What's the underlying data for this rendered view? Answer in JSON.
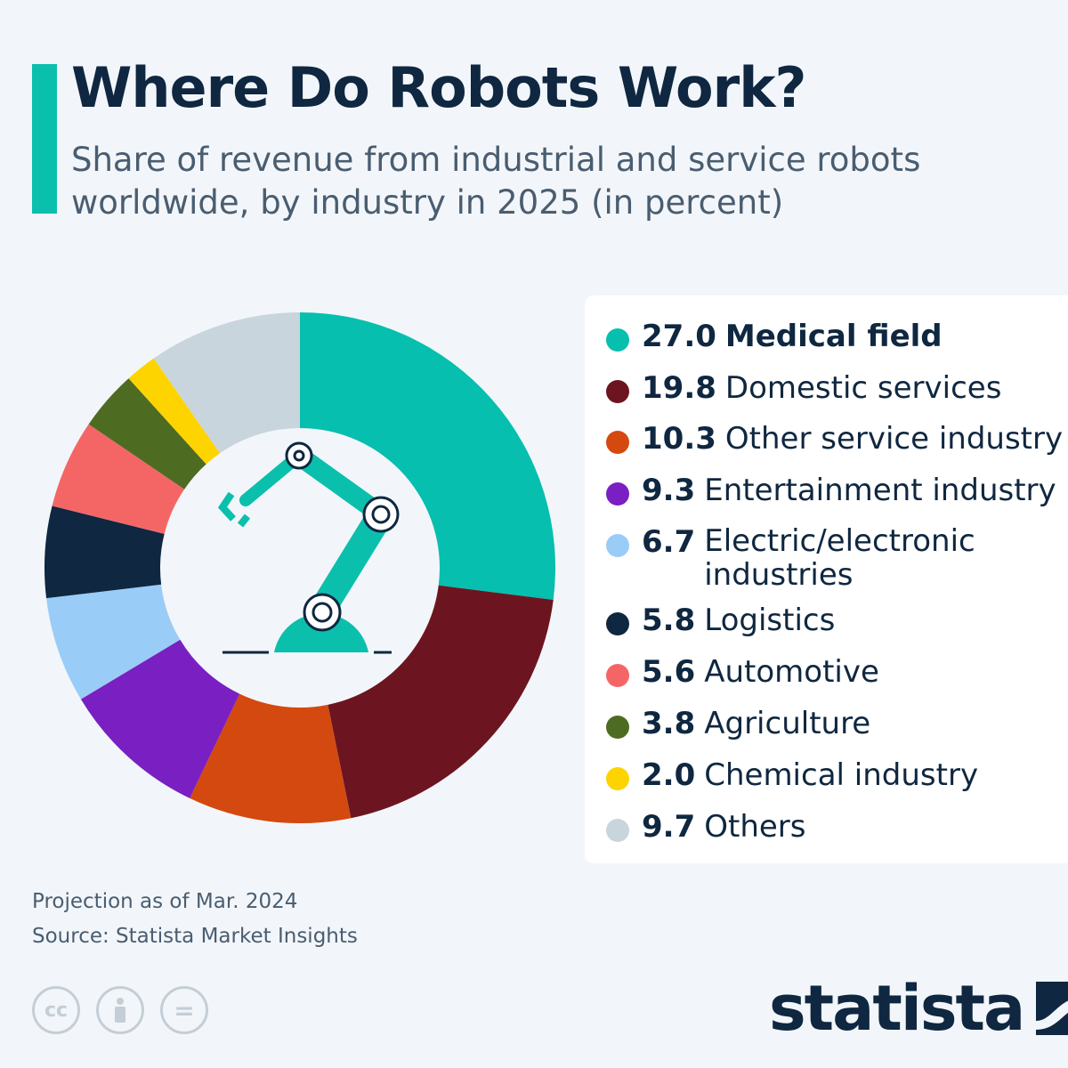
{
  "header": {
    "title": "Where Do Robots Work?",
    "subtitle": "Share of revenue from industrial and service robots worldwide, by industry in 2025 (in percent)"
  },
  "chart_data": {
    "type": "pie",
    "variant": "donut",
    "start": "top, clockwise",
    "legend_position": "right",
    "categories": [
      "Medical field",
      "Domestic services",
      "Other service industry",
      "Entertainment industry",
      "Electric/electronic industries",
      "Logistics",
      "Automotive",
      "Agriculture",
      "Chemical industry",
      "Others"
    ],
    "values": [
      27.0,
      19.8,
      10.3,
      9.3,
      6.7,
      5.8,
      5.6,
      3.8,
      2.0,
      9.7
    ],
    "value_labels": [
      "27.0",
      "19.8",
      "10.3",
      "9.3",
      "6.7",
      "5.8",
      "5.6",
      "3.8",
      "2.0",
      "9.7"
    ],
    "colors": [
      "#06bfae",
      "#6c1520",
      "#d4490f",
      "#7a1fc1",
      "#9accf8",
      "#0f2740",
      "#f46666",
      "#4e6b22",
      "#fed400",
      "#c8d5dd"
    ]
  },
  "footer": {
    "note": "Projection as of Mar. 2024",
    "source": "Source: Statista Market Insights",
    "license_icons": [
      "cc-icon",
      "by-icon",
      "nd-icon"
    ],
    "cc_text": "cc",
    "nd_text": "="
  },
  "logo": {
    "text": "statista"
  },
  "center_icon": "robot-arm-icon"
}
